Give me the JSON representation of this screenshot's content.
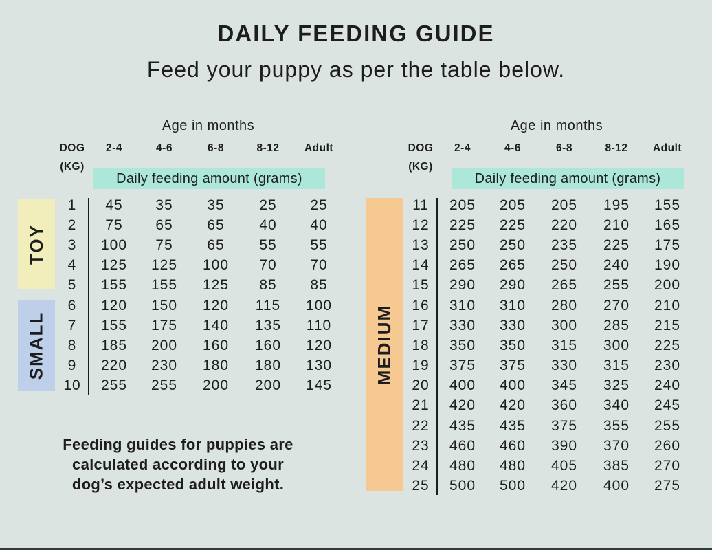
{
  "title": "DAILY FEEDING GUIDE",
  "subtitle": "Feed your puppy as per the table below.",
  "footer": {
    "lines": [
      "Feeding guides for puppies are",
      "calculated according to your",
      "dog’s expected adult weight."
    ]
  },
  "colors": {
    "background": "#dce4e2",
    "highlight_band": "#ace7da",
    "toy": "#f1eebb",
    "small": "#bdcfe9",
    "medium": "#f6c992",
    "text": "#1d1d1f",
    "bottom_bar": "#323b3b"
  },
  "tables": [
    {
      "age_header": "Age in months",
      "dog_label": "DOG",
      "kg_label": "(KG)",
      "age_columns": [
        "2-4",
        "4-6",
        "6-8",
        "8-12",
        "Adult"
      ],
      "band_label": "Daily feeding amount (grams)",
      "categories": [
        {
          "label": "TOY"
        },
        {
          "label": "SMALL"
        }
      ],
      "rows": [
        {
          "kg": "1",
          "values": [
            "45",
            "35",
            "35",
            "25",
            "25"
          ]
        },
        {
          "kg": "2",
          "values": [
            "75",
            "65",
            "65",
            "40",
            "40"
          ]
        },
        {
          "kg": "3",
          "values": [
            "100",
            "75",
            "65",
            "55",
            "55"
          ]
        },
        {
          "kg": "4",
          "values": [
            "125",
            "125",
            "100",
            "70",
            "70"
          ]
        },
        {
          "kg": "5",
          "values": [
            "155",
            "155",
            "125",
            "85",
            "85"
          ]
        },
        {
          "kg": "6",
          "values": [
            "120",
            "150",
            "120",
            "115",
            "100"
          ]
        },
        {
          "kg": "7",
          "values": [
            "155",
            "175",
            "140",
            "135",
            "110"
          ]
        },
        {
          "kg": "8",
          "values": [
            "185",
            "200",
            "160",
            "160",
            "120"
          ]
        },
        {
          "kg": "9",
          "values": [
            "220",
            "230",
            "180",
            "180",
            "130"
          ]
        },
        {
          "kg": "10",
          "values": [
            "255",
            "255",
            "200",
            "200",
            "145"
          ]
        }
      ]
    },
    {
      "age_header": "Age in months",
      "dog_label": "DOG",
      "kg_label": "(KG)",
      "age_columns": [
        "2-4",
        "4-6",
        "6-8",
        "8-12",
        "Adult"
      ],
      "band_label": "Daily feeding amount (grams)",
      "categories": [
        {
          "label": "MEDIUM"
        }
      ],
      "rows": [
        {
          "kg": "11",
          "values": [
            "205",
            "205",
            "205",
            "195",
            "155"
          ]
        },
        {
          "kg": "12",
          "values": [
            "225",
            "225",
            "220",
            "210",
            "165"
          ]
        },
        {
          "kg": "13",
          "values": [
            "250",
            "250",
            "235",
            "225",
            "175"
          ]
        },
        {
          "kg": "14",
          "values": [
            "265",
            "265",
            "250",
            "240",
            "190"
          ]
        },
        {
          "kg": "15",
          "values": [
            "290",
            "290",
            "265",
            "255",
            "200"
          ]
        },
        {
          "kg": "16",
          "values": [
            "310",
            "310",
            "280",
            "270",
            "210"
          ]
        },
        {
          "kg": "17",
          "values": [
            "330",
            "330",
            "300",
            "285",
            "215"
          ]
        },
        {
          "kg": "18",
          "values": [
            "350",
            "350",
            "315",
            "300",
            "225"
          ]
        },
        {
          "kg": "19",
          "values": [
            "375",
            "375",
            "330",
            "315",
            "230"
          ]
        },
        {
          "kg": "20",
          "values": [
            "400",
            "400",
            "345",
            "325",
            "240"
          ]
        },
        {
          "kg": "21",
          "values": [
            "420",
            "420",
            "360",
            "340",
            "245"
          ]
        },
        {
          "kg": "22",
          "values": [
            "435",
            "435",
            "375",
            "355",
            "255"
          ]
        },
        {
          "kg": "23",
          "values": [
            "460",
            "460",
            "390",
            "370",
            "260"
          ]
        },
        {
          "kg": "24",
          "values": [
            "480",
            "480",
            "405",
            "385",
            "270"
          ]
        },
        {
          "kg": "25",
          "values": [
            "500",
            "500",
            "420",
            "400",
            "275"
          ]
        }
      ]
    }
  ],
  "chart_data": [
    {
      "type": "table",
      "title": "Daily Feeding Guide - Toy & Small dogs",
      "group_labels": [
        "TOY",
        "SMALL"
      ],
      "columns": [
        "DOG (KG)",
        "2-4",
        "4-6",
        "6-8",
        "8-12",
        "Adult"
      ],
      "values_label": "Daily feeding amount (grams)",
      "x_header": "Age in months",
      "rows": [
        [
          1,
          45,
          35,
          35,
          25,
          25
        ],
        [
          2,
          75,
          65,
          65,
          40,
          40
        ],
        [
          3,
          100,
          75,
          65,
          55,
          55
        ],
        [
          4,
          125,
          125,
          100,
          70,
          70
        ],
        [
          5,
          155,
          155,
          125,
          85,
          85
        ],
        [
          6,
          120,
          150,
          120,
          115,
          100
        ],
        [
          7,
          155,
          175,
          140,
          135,
          110
        ],
        [
          8,
          185,
          200,
          160,
          160,
          120
        ],
        [
          9,
          220,
          230,
          180,
          180,
          130
        ],
        [
          10,
          255,
          255,
          200,
          200,
          145
        ]
      ]
    },
    {
      "type": "table",
      "title": "Daily Feeding Guide - Medium dogs",
      "group_labels": [
        "MEDIUM"
      ],
      "columns": [
        "DOG (KG)",
        "2-4",
        "4-6",
        "6-8",
        "8-12",
        "Adult"
      ],
      "values_label": "Daily feeding amount (grams)",
      "x_header": "Age in months",
      "rows": [
        [
          11,
          205,
          205,
          205,
          195,
          155
        ],
        [
          12,
          225,
          225,
          220,
          210,
          165
        ],
        [
          13,
          250,
          250,
          235,
          225,
          175
        ],
        [
          14,
          265,
          265,
          250,
          240,
          190
        ],
        [
          15,
          290,
          290,
          265,
          255,
          200
        ],
        [
          16,
          310,
          310,
          280,
          270,
          210
        ],
        [
          17,
          330,
          330,
          300,
          285,
          215
        ],
        [
          18,
          350,
          350,
          315,
          300,
          225
        ],
        [
          19,
          375,
          375,
          330,
          315,
          230
        ],
        [
          20,
          400,
          400,
          345,
          325,
          240
        ],
        [
          21,
          420,
          420,
          360,
          340,
          245
        ],
        [
          22,
          435,
          435,
          375,
          355,
          255
        ],
        [
          23,
          460,
          460,
          390,
          370,
          260
        ],
        [
          24,
          480,
          480,
          405,
          385,
          270
        ],
        [
          25,
          500,
          500,
          420,
          400,
          275
        ]
      ]
    }
  ]
}
